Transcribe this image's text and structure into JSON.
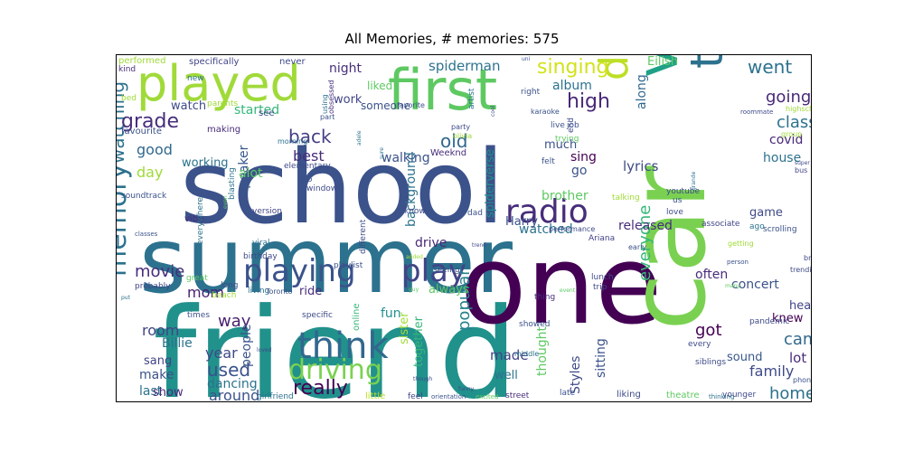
{
  "chart_data": {
    "type": "wordcloud",
    "title": "All Memories, # memories: 575",
    "colormap": "viridis",
    "words": [
      {
        "text": "friend",
        "weight": 100
      },
      {
        "text": "school",
        "weight": 95
      },
      {
        "text": "summer",
        "weight": 90
      },
      {
        "text": "one",
        "weight": 85
      },
      {
        "text": "car",
        "weight": 80
      },
      {
        "text": "first",
        "weight": 55
      },
      {
        "text": "played",
        "weight": 55
      },
      {
        "text": "video",
        "weight": 52
      },
      {
        "text": "tiktok",
        "weight": 45
      },
      {
        "text": "dance",
        "weight": 42
      },
      {
        "text": "playing",
        "weight": 40
      },
      {
        "text": "play",
        "weight": 40
      },
      {
        "text": "radio",
        "weight": 40
      },
      {
        "text": "think",
        "weight": 38
      },
      {
        "text": "memory",
        "weight": 36
      },
      {
        "text": "driving",
        "weight": 32
      },
      {
        "text": "singing",
        "weight": 28
      },
      {
        "text": "watching",
        "weight": 28
      },
      {
        "text": "grade",
        "weight": 24
      },
      {
        "text": "really",
        "weight": 24
      },
      {
        "text": "back",
        "weight": 22
      },
      {
        "text": "high",
        "weight": 22
      },
      {
        "text": "used",
        "weight": 22
      },
      {
        "text": "movie",
        "weight": 22
      },
      {
        "text": "old",
        "weight": 22
      },
      {
        "text": "went",
        "weight": 22
      },
      {
        "text": "going",
        "weight": 22
      },
      {
        "text": "class",
        "weight": 20
      },
      {
        "text": "came",
        "weight": 20
      },
      {
        "text": "got",
        "weight": 20
      },
      {
        "text": "way",
        "weight": 20
      },
      {
        "text": "everyone",
        "weight": 20
      },
      {
        "text": "home",
        "weight": 18
      },
      {
        "text": "family",
        "weight": 18
      },
      {
        "text": "popular",
        "weight": 18
      },
      {
        "text": "around",
        "weight": 16
      },
      {
        "text": "best",
        "weight": 16
      },
      {
        "text": "good",
        "weight": 16
      },
      {
        "text": "day",
        "weight": 16
      },
      {
        "text": "room",
        "weight": 16
      },
      {
        "text": "year",
        "weight": 16
      },
      {
        "text": "mom",
        "weight": 16
      },
      {
        "text": "spiderman",
        "weight": 14
      },
      {
        "text": "background",
        "weight": 14
      },
      {
        "text": "walking",
        "weight": 14
      },
      {
        "text": "covid",
        "weight": 14
      },
      {
        "text": "house",
        "weight": 14
      },
      {
        "text": "lyrics",
        "weight": 14
      },
      {
        "text": "sing",
        "weight": 14
      },
      {
        "text": "album",
        "weight": 12
      },
      {
        "text": "much",
        "weight": 12
      },
      {
        "text": "night",
        "weight": 12
      },
      {
        "text": "work",
        "weight": 12
      },
      {
        "text": "watch",
        "weight": 12
      },
      {
        "text": "working",
        "weight": 12
      },
      {
        "text": "started",
        "weight": 12
      },
      {
        "text": "speaker",
        "weight": 12
      },
      {
        "text": "alot",
        "weight": 12
      },
      {
        "text": "along",
        "weight": 12
      },
      {
        "text": "go",
        "weight": 12
      },
      {
        "text": "spiderverse",
        "weight": 12
      },
      {
        "text": "brother",
        "weight": 12
      },
      {
        "text": "released",
        "weight": 12
      },
      {
        "text": "watched",
        "weight": 12
      },
      {
        "text": "game",
        "weight": 12
      },
      {
        "text": "drive",
        "weight": 12
      },
      {
        "text": "concert",
        "weight": 12
      },
      {
        "text": "often",
        "weight": 12
      },
      {
        "text": "hear",
        "weight": 12
      },
      {
        "text": "knew",
        "weight": 12
      },
      {
        "text": "always",
        "weight": 12
      },
      {
        "text": "sister",
        "weight": 12
      },
      {
        "text": "together",
        "weight": 12
      },
      {
        "text": "thought",
        "weight": 12
      },
      {
        "text": "sitting",
        "weight": 12
      },
      {
        "text": "Styles",
        "weight": 12
      },
      {
        "text": "made",
        "weight": 12
      },
      {
        "text": "well",
        "weight": 12
      },
      {
        "text": "lot",
        "weight": 12
      },
      {
        "text": "sound",
        "weight": 12
      },
      {
        "text": "people",
        "weight": 12
      },
      {
        "text": "fun",
        "weight": 12
      },
      {
        "text": "Billie",
        "weight": 12
      },
      {
        "text": "sang",
        "weight": 12
      },
      {
        "text": "make",
        "weight": 12
      },
      {
        "text": "last",
        "weight": 12
      },
      {
        "text": "show",
        "weight": 12
      },
      {
        "text": "dancing",
        "weight": 12
      },
      {
        "text": "ride",
        "weight": 12
      },
      {
        "text": "Harry",
        "weight": 10
      },
      {
        "text": "Eilish",
        "weight": 10
      },
      {
        "text": "someone",
        "weight": 10
      },
      {
        "text": "liked",
        "weight": 10
      },
      {
        "text": "Weeknd",
        "weight": 8
      },
      {
        "text": "elementary",
        "weight": 8
      },
      {
        "text": "favourite",
        "weight": 8
      },
      {
        "text": "making",
        "weight": 8
      },
      {
        "text": "specifically",
        "weight": 8
      },
      {
        "text": "never",
        "weight": 8
      },
      {
        "text": "performed",
        "weight": 8
      },
      {
        "text": "kind",
        "weight": 8
      },
      {
        "text": "new",
        "weight": 8
      },
      {
        "text": "bed",
        "weight": 8
      },
      {
        "text": "parents",
        "weight": 8
      },
      {
        "text": "see",
        "weight": 8
      },
      {
        "text": "part",
        "weight": 8
      },
      {
        "text": "morning",
        "weight": 8
      },
      {
        "text": "two",
        "weight": 8
      },
      {
        "text": "window",
        "weight": 8
      },
      {
        "text": "soundtrack",
        "weight": 8
      },
      {
        "text": "vibe",
        "weight": 8
      },
      {
        "text": "version",
        "weight": 8
      },
      {
        "text": "blasting",
        "weight": 8
      },
      {
        "text": "everywhere",
        "weight": 8
      },
      {
        "text": "viral",
        "weight": 8
      },
      {
        "text": "different",
        "weight": 8
      },
      {
        "text": "playlist",
        "weight": 8
      },
      {
        "text": "birthday",
        "weight": 8
      },
      {
        "text": "long",
        "weight": 8
      },
      {
        "text": "living",
        "weight": 8
      },
      {
        "text": "probably",
        "weight": 8
      },
      {
        "text": "great",
        "weight": 8
      },
      {
        "text": "beach",
        "weight": 8
      },
      {
        "text": "times",
        "weight": 8
      },
      {
        "text": "specific",
        "weight": 8
      },
      {
        "text": "Toronto",
        "weight": 8
      },
      {
        "text": "online",
        "weight": 8
      },
      {
        "text": "girlfriend",
        "weight": 8
      },
      {
        "text": "little",
        "weight": 8
      },
      {
        "text": "feel",
        "weight": 8
      },
      {
        "text": "orientation",
        "weight": 6
      },
      {
        "text": "excited",
        "weight": 6
      },
      {
        "text": "street",
        "weight": 8
      },
      {
        "text": "late",
        "weight": 8
      },
      {
        "text": "liking",
        "weight": 8
      },
      {
        "text": "theatre",
        "weight": 8
      },
      {
        "text": "thinking",
        "weight": 6
      },
      {
        "text": "younger",
        "weight": 8
      },
      {
        "text": "siblings",
        "weight": 8
      },
      {
        "text": "every",
        "weight": 8
      },
      {
        "text": "pandemic",
        "weight": 8
      },
      {
        "text": "phone",
        "weight": 8
      },
      {
        "text": "trending",
        "weight": 8
      },
      {
        "text": "brought",
        "weight": 8
      },
      {
        "text": "getting",
        "weight": 8
      },
      {
        "text": "ago",
        "weight": 8
      },
      {
        "text": "associate",
        "weight": 8
      },
      {
        "text": "scrolling",
        "weight": 8
      },
      {
        "text": "love",
        "weight": 8
      },
      {
        "text": "youtube",
        "weight": 8
      },
      {
        "text": "us",
        "weight": 8
      },
      {
        "text": "bus",
        "weight": 8
      },
      {
        "text": "super",
        "weight": 6
      },
      {
        "text": "group",
        "weight": 8
      },
      {
        "text": "highschool",
        "weight": 8
      },
      {
        "text": "roommate",
        "weight": 6
      },
      {
        "text": "grande",
        "weight": 6
      },
      {
        "text": "talking",
        "weight": 8
      },
      {
        "text": "early",
        "weight": 8
      },
      {
        "text": "Ariana",
        "weight": 8
      },
      {
        "text": "performance",
        "weight": 8
      },
      {
        "text": "dad",
        "weight": 8
      },
      {
        "text": "know",
        "weight": 8
      },
      {
        "text": "felt",
        "weight": 8
      },
      {
        "text": "party",
        "weight": 8
      },
      {
        "text": "olivia",
        "weight": 8
      },
      {
        "text": "live",
        "weight": 8
      },
      {
        "text": "job",
        "weight": 8
      },
      {
        "text": "trying",
        "weight": 8
      },
      {
        "text": "karaoke",
        "weight": 8
      },
      {
        "text": "right",
        "weight": 8
      },
      {
        "text": "artist",
        "weight": 8
      },
      {
        "text": "favorite",
        "weight": 8
      },
      {
        "text": "obsessed",
        "weight": 8
      },
      {
        "text": "using",
        "weight": 8
      },
      {
        "text": "uni",
        "weight": 6
      },
      {
        "text": "cool",
        "weight": 6
      },
      {
        "text": "sure",
        "weight": 6
      },
      {
        "text": "adele",
        "weight": 6
      },
      {
        "text": "lunch",
        "weight": 8
      },
      {
        "text": "trip",
        "weight": 8
      },
      {
        "text": "seeing",
        "weight": 8
      },
      {
        "text": "added",
        "weight": 6
      },
      {
        "text": "guy",
        "weight": 6
      },
      {
        "text": "thing",
        "weight": 8
      },
      {
        "text": "event",
        "weight": 6
      },
      {
        "text": "showed",
        "weight": 8
      },
      {
        "text": "middle",
        "weight": 8
      },
      {
        "text": "funny",
        "weight": 6
      },
      {
        "text": "though",
        "weight": 6
      },
      {
        "text": "person",
        "weight": 6
      },
      {
        "text": "many",
        "weight": 6
      },
      {
        "text": "trend",
        "weight": 6
      },
      {
        "text": "even",
        "weight": 6
      },
      {
        "text": "classes",
        "weight": 6
      },
      {
        "text": "put",
        "weight": 6
      },
      {
        "text": "loved",
        "weight": 6
      },
      {
        "text": "end",
        "weight": 8
      }
    ]
  }
}
